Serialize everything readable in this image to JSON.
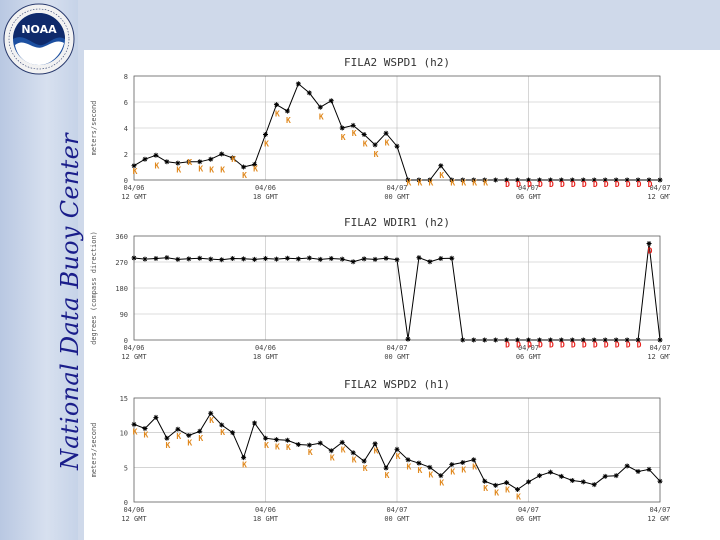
{
  "sidebar": {
    "title": "National Data Buoy Center",
    "logo_text": "NOAA"
  },
  "chart_data": [
    {
      "type": "line",
      "title": "FILA2 WSPD1 (h2)",
      "ylabel": "meters/second",
      "ylim": [
        0,
        8
      ],
      "yticks": [
        0,
        2,
        4,
        6,
        8
      ],
      "xlim": [
        0,
        48
      ],
      "xticks": [
        {
          "x": 0,
          "l1": "04/06",
          "l2": "12 GMT"
        },
        {
          "x": 12,
          "l1": "04/06",
          "l2": "18 GMT"
        },
        {
          "x": 24,
          "l1": "04/07",
          "l2": "00 GMT"
        },
        {
          "x": 36,
          "l1": "04/07",
          "l2": "06 GMT"
        },
        {
          "x": 48,
          "l1": "04/07",
          "l2": "12 GMT"
        }
      ],
      "series": [
        {
          "x": [
            0,
            1,
            2,
            3,
            4,
            5,
            6,
            7,
            8,
            9,
            10,
            11,
            12,
            13,
            14,
            15,
            16,
            17,
            18,
            19,
            20,
            21,
            22,
            23,
            24,
            25,
            26,
            27,
            28,
            29,
            30,
            31,
            32,
            33,
            34,
            35,
            36,
            37,
            38,
            39,
            40,
            41,
            42,
            43,
            44,
            45,
            46,
            47,
            48
          ],
          "values": [
            1.1,
            1.6,
            1.9,
            1.4,
            1.3,
            1.4,
            1.4,
            1.6,
            2.0,
            1.7,
            1.0,
            1.2,
            3.5,
            5.8,
            5.3,
            7.4,
            6.7,
            5.6,
            6.1,
            4.0,
            4.2,
            3.5,
            2.7,
            3.6,
            2.6,
            0.0,
            0.0,
            0.0,
            1.1,
            0.0,
            0.0,
            0.0,
            0.0,
            0.0,
            0.0,
            0.0,
            0.0,
            0.0,
            0.0,
            0.0,
            0.0,
            0.0,
            0.0,
            0.0,
            0.0,
            0.0,
            0.0,
            0.0,
            0.0
          ]
        }
      ],
      "flags": [
        {
          "x": 0,
          "y": 0.7,
          "t": "K"
        },
        {
          "x": 2,
          "y": 1.1,
          "t": "K"
        },
        {
          "x": 4,
          "y": 0.8,
          "t": "K"
        },
        {
          "x": 5,
          "y": 1.4,
          "t": "K"
        },
        {
          "x": 6,
          "y": 0.9,
          "t": "K"
        },
        {
          "x": 7,
          "y": 0.8,
          "t": "K"
        },
        {
          "x": 8,
          "y": 0.8,
          "t": "K"
        },
        {
          "x": 9,
          "y": 1.6,
          "t": "K"
        },
        {
          "x": 10,
          "y": 0.4,
          "t": "K"
        },
        {
          "x": 11,
          "y": 0.9,
          "t": "K"
        },
        {
          "x": 12,
          "y": 2.8,
          "t": "K"
        },
        {
          "x": 13,
          "y": 5.1,
          "t": "K"
        },
        {
          "x": 14,
          "y": 4.6,
          "t": "K"
        },
        {
          "x": 17,
          "y": 4.9,
          "t": "K"
        },
        {
          "x": 19,
          "y": 3.3,
          "t": "K"
        },
        {
          "x": 20,
          "y": 3.6,
          "t": "K"
        },
        {
          "x": 21,
          "y": 2.8,
          "t": "K"
        },
        {
          "x": 22,
          "y": 2.0,
          "t": "K"
        },
        {
          "x": 23,
          "y": 2.9,
          "t": "K"
        },
        {
          "x": 25,
          "y": -0.2,
          "t": "K"
        },
        {
          "x": 26,
          "y": -0.2,
          "t": "K"
        },
        {
          "x": 27,
          "y": -0.2,
          "t": "K"
        },
        {
          "x": 28,
          "y": 0.4,
          "t": "K"
        },
        {
          "x": 29,
          "y": -0.2,
          "t": "K"
        },
        {
          "x": 30,
          "y": -0.2,
          "t": "K"
        },
        {
          "x": 31,
          "y": -0.2,
          "t": "K"
        },
        {
          "x": 32,
          "y": -0.2,
          "t": "K"
        },
        {
          "x": 34,
          "y": -0.3,
          "t": "D"
        },
        {
          "x": 35,
          "y": -0.3,
          "t": "D"
        },
        {
          "x": 36,
          "y": -0.3,
          "t": "D"
        },
        {
          "x": 37,
          "y": -0.3,
          "t": "D"
        },
        {
          "x": 38,
          "y": -0.3,
          "t": "D"
        },
        {
          "x": 39,
          "y": -0.3,
          "t": "D"
        },
        {
          "x": 40,
          "y": -0.3,
          "t": "D"
        },
        {
          "x": 41,
          "y": -0.3,
          "t": "D"
        },
        {
          "x": 42,
          "y": -0.3,
          "t": "D"
        },
        {
          "x": 43,
          "y": -0.3,
          "t": "D"
        },
        {
          "x": 44,
          "y": -0.3,
          "t": "D"
        },
        {
          "x": 45,
          "y": -0.3,
          "t": "D"
        },
        {
          "x": 46,
          "y": -0.3,
          "t": "D"
        },
        {
          "x": 47,
          "y": -0.3,
          "t": "D"
        }
      ]
    },
    {
      "type": "line",
      "title": "FILA2 WDIR1 (h2)",
      "ylabel": "degrees (compass direction)",
      "ylim": [
        0,
        360
      ],
      "yticks": [
        0,
        90,
        180,
        270,
        360
      ],
      "xlim": [
        0,
        48
      ],
      "xticks": [
        {
          "x": 0,
          "l1": "04/06",
          "l2": "12 GMT"
        },
        {
          "x": 12,
          "l1": "04/06",
          "l2": "18 GMT"
        },
        {
          "x": 24,
          "l1": "04/07",
          "l2": "00 GMT"
        },
        {
          "x": 36,
          "l1": "04/07",
          "l2": "06 GMT"
        },
        {
          "x": 48,
          "l1": "04/07",
          "l2": "12 GMT"
        }
      ],
      "series": [
        {
          "x": [
            0,
            1,
            2,
            3,
            4,
            5,
            6,
            7,
            8,
            9,
            10,
            11,
            12,
            13,
            14,
            15,
            16,
            17,
            18,
            19,
            20,
            21,
            22,
            23,
            24,
            25,
            26,
            27,
            28,
            29,
            30,
            31,
            32,
            33,
            34,
            35,
            36,
            37,
            38,
            39,
            40,
            41,
            42,
            43,
            44,
            45,
            46,
            47,
            48
          ],
          "values": [
            284,
            280,
            282,
            285,
            279,
            281,
            283,
            280,
            278,
            282,
            281,
            279,
            282,
            280,
            283,
            281,
            284,
            279,
            282,
            280,
            271,
            281,
            279,
            283,
            278,
            3,
            285,
            271,
            282,
            283,
            0,
            0,
            0,
            0,
            0,
            0,
            0,
            0,
            0,
            0,
            0,
            0,
            0,
            0,
            0,
            0,
            0,
            334,
            0
          ]
        }
      ],
      "flags": [
        {
          "x": 34,
          "y": -15,
          "t": "D"
        },
        {
          "x": 35,
          "y": -15,
          "t": "D"
        },
        {
          "x": 36,
          "y": -15,
          "t": "D"
        },
        {
          "x": 37,
          "y": -15,
          "t": "D"
        },
        {
          "x": 38,
          "y": -15,
          "t": "D"
        },
        {
          "x": 39,
          "y": -15,
          "t": "D"
        },
        {
          "x": 40,
          "y": -15,
          "t": "D"
        },
        {
          "x": 41,
          "y": -15,
          "t": "D"
        },
        {
          "x": 42,
          "y": -15,
          "t": "D"
        },
        {
          "x": 43,
          "y": -15,
          "t": "D"
        },
        {
          "x": 44,
          "y": -15,
          "t": "D"
        },
        {
          "x": 45,
          "y": -15,
          "t": "D"
        },
        {
          "x": 46,
          "y": -15,
          "t": "D"
        },
        {
          "x": 47,
          "y": 310,
          "t": "D"
        }
      ]
    },
    {
      "type": "line",
      "title": "FILA2 WSPD2 (h1)",
      "ylabel": "meters/second",
      "ylim": [
        0,
        15
      ],
      "yticks": [
        0,
        5,
        10,
        15
      ],
      "xlim": [
        0,
        48
      ],
      "xticks": [
        {
          "x": 0,
          "l1": "04/06",
          "l2": "12 GMT"
        },
        {
          "x": 12,
          "l1": "04/06",
          "l2": "18 GMT"
        },
        {
          "x": 24,
          "l1": "04/07",
          "l2": "00 GMT"
        },
        {
          "x": 36,
          "l1": "04/07",
          "l2": "06 GMT"
        },
        {
          "x": 48,
          "l1": "04/07",
          "l2": "12 GMT"
        }
      ],
      "series": [
        {
          "x": [
            0,
            1,
            2,
            3,
            4,
            5,
            6,
            7,
            8,
            9,
            10,
            11,
            12,
            13,
            14,
            15,
            16,
            17,
            18,
            19,
            20,
            21,
            22,
            23,
            24,
            25,
            26,
            27,
            28,
            29,
            30,
            31,
            32,
            33,
            34,
            35,
            36,
            37,
            38,
            39,
            40,
            41,
            42,
            43,
            44,
            45,
            46,
            47,
            48
          ],
          "values": [
            11.2,
            10.6,
            12.2,
            9.2,
            10.5,
            9.6,
            10.2,
            12.8,
            11.1,
            10.0,
            6.4,
            11.4,
            9.2,
            9.0,
            8.9,
            8.3,
            8.2,
            8.5,
            7.4,
            8.6,
            7.1,
            5.9,
            8.4,
            4.9,
            7.6,
            6.1,
            5.6,
            5.0,
            3.8,
            5.4,
            5.7,
            6.1,
            3.0,
            2.4,
            2.8,
            1.8,
            2.9,
            3.8,
            4.3,
            3.7,
            3.1,
            2.9,
            2.5,
            3.7,
            3.8,
            5.2,
            4.4,
            4.7,
            3.0
          ]
        }
      ],
      "flags": [
        {
          "x": 0,
          "y": 10.2,
          "t": "K"
        },
        {
          "x": 1,
          "y": 9.7,
          "t": "K"
        },
        {
          "x": 3,
          "y": 8.2,
          "t": "K"
        },
        {
          "x": 4,
          "y": 9.5,
          "t": "K"
        },
        {
          "x": 5,
          "y": 8.6,
          "t": "K"
        },
        {
          "x": 6,
          "y": 9.2,
          "t": "K"
        },
        {
          "x": 7,
          "y": 11.8,
          "t": "K"
        },
        {
          "x": 8,
          "y": 10.1,
          "t": "K"
        },
        {
          "x": 10,
          "y": 5.4,
          "t": "K"
        },
        {
          "x": 12,
          "y": 8.2,
          "t": "K"
        },
        {
          "x": 13,
          "y": 8.0,
          "t": "K"
        },
        {
          "x": 14,
          "y": 7.9,
          "t": "K"
        },
        {
          "x": 16,
          "y": 7.2,
          "t": "K"
        },
        {
          "x": 18,
          "y": 6.4,
          "t": "K"
        },
        {
          "x": 19,
          "y": 7.6,
          "t": "K"
        },
        {
          "x": 20,
          "y": 6.1,
          "t": "K"
        },
        {
          "x": 21,
          "y": 4.9,
          "t": "K"
        },
        {
          "x": 22,
          "y": 7.4,
          "t": "K"
        },
        {
          "x": 23,
          "y": 3.9,
          "t": "K"
        },
        {
          "x": 24,
          "y": 6.6,
          "t": "K"
        },
        {
          "x": 25,
          "y": 5.1,
          "t": "K"
        },
        {
          "x": 26,
          "y": 4.6,
          "t": "K"
        },
        {
          "x": 27,
          "y": 4.0,
          "t": "K"
        },
        {
          "x": 28,
          "y": 2.8,
          "t": "K"
        },
        {
          "x": 29,
          "y": 4.4,
          "t": "K"
        },
        {
          "x": 30,
          "y": 4.7,
          "t": "K"
        },
        {
          "x": 31,
          "y": 5.1,
          "t": "K"
        },
        {
          "x": 32,
          "y": 2.0,
          "t": "K"
        },
        {
          "x": 33,
          "y": 1.4,
          "t": "K"
        },
        {
          "x": 34,
          "y": 1.8,
          "t": "K"
        },
        {
          "x": 35,
          "y": 0.8,
          "t": "K"
        }
      ]
    }
  ],
  "colors": {
    "line": "#000000",
    "flagK": "#e0891f",
    "flagD": "#e8221e",
    "title": "#333333",
    "sidebar_text": "#1a1d8a"
  }
}
